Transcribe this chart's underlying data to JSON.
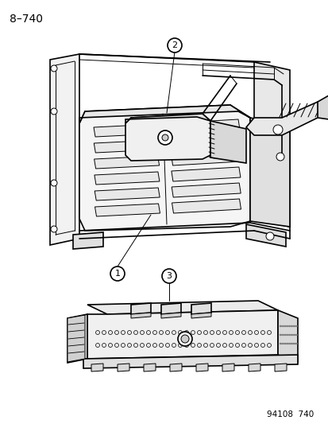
{
  "title": "8–740",
  "footer": "94108  740",
  "bg_color": "#ffffff",
  "line_color": "#000000",
  "label1": "1",
  "label2": "2",
  "label3": "3",
  "title_fontsize": 10,
  "footer_fontsize": 7.5,
  "label_fontsize": 8
}
